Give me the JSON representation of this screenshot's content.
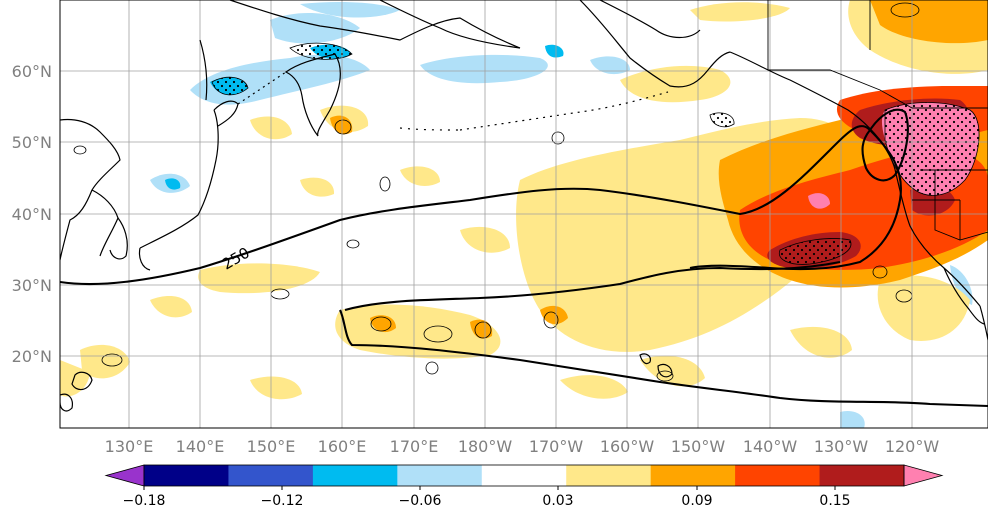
{
  "map": {
    "lat_labels": [
      "60°N",
      "50°N",
      "40°N",
      "30°N",
      "20°N"
    ],
    "lon_labels": [
      "130°E",
      "140°E",
      "150°E",
      "160°E",
      "170°E",
      "180°W",
      "170°W",
      "160°W",
      "150°W",
      "140°W",
      "130°W",
      "120°W"
    ],
    "contour_label": "250"
  },
  "colorbar": {
    "tick_labels": [
      "−0.18",
      "−0.12",
      "−0.06",
      "0.03",
      "0.09",
      "0.15"
    ],
    "colors": [
      "#9933cc",
      "#000088",
      "#3355cc",
      "#00bbf0",
      "#b0e0f8",
      "#ffffff",
      "#ffe88a",
      "#ffa500",
      "#ff4400",
      "#b01c1c",
      "#ff80b0"
    ]
  }
}
